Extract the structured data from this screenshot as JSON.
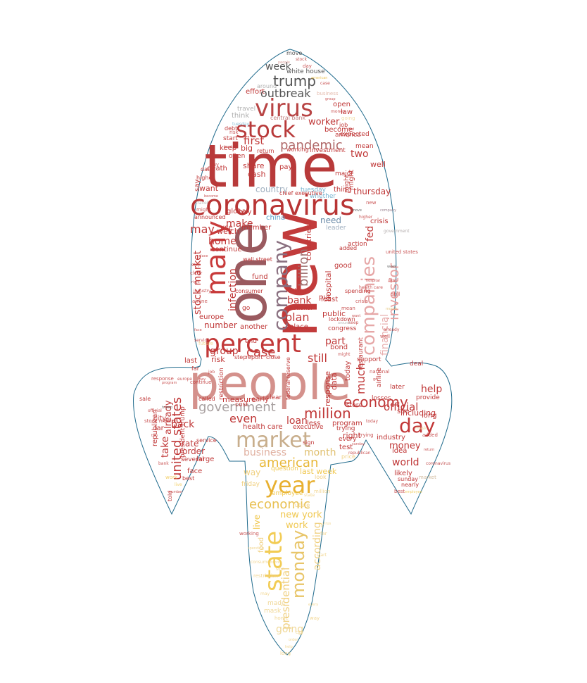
{
  "words": [
    {
      "text": "people",
      "color": "#d4918c"
    },
    {
      "text": "time",
      "color": "#b83a3a"
    },
    {
      "text": "new",
      "color": "#c23b3b"
    },
    {
      "text": "one",
      "color": "#9a5a5f"
    },
    {
      "text": "coronavirus",
      "color": "#b83434"
    },
    {
      "text": "percent",
      "color": "#c23838"
    },
    {
      "text": "virus",
      "color": "#b84444"
    },
    {
      "text": "stock",
      "color": "#b83a3a"
    },
    {
      "text": "many",
      "color": "#c83a3a"
    },
    {
      "text": "company",
      "color": "#8a7080"
    },
    {
      "text": "companies",
      "color": "#e6a7a7"
    },
    {
      "text": "market",
      "color": "#c8ae8c"
    },
    {
      "text": "year",
      "color": "#e8b030"
    },
    {
      "text": "state",
      "color": "#f2cc55"
    },
    {
      "text": "day",
      "color": "#c23838"
    },
    {
      "text": "monday",
      "color": "#e8c568"
    },
    {
      "text": "government",
      "color": "#a8a0a0"
    },
    {
      "text": "pandemic",
      "color": "#b06a6a"
    },
    {
      "text": "trump",
      "color": "#555555"
    },
    {
      "text": "economy",
      "color": "#c03838"
    },
    {
      "text": "million",
      "color": "#c03838"
    },
    {
      "text": "american",
      "color": "#e8b838"
    },
    {
      "text": "economic",
      "color": "#e8c050"
    },
    {
      "text": "united states",
      "color": "#c03838"
    },
    {
      "text": "investor",
      "color": "#e8a0a0"
    },
    {
      "text": "official",
      "color": "#c03838"
    },
    {
      "text": "billion",
      "color": "#a07070"
    },
    {
      "text": "even",
      "color": "#c03838"
    },
    {
      "text": "case",
      "color": "#c03838"
    },
    {
      "text": "much",
      "color": "#c03838"
    },
    {
      "text": "week",
      "color": "#555555"
    },
    {
      "text": "outbreak",
      "color": "#555555"
    },
    {
      "text": "stock market",
      "color": "#c03838"
    },
    {
      "text": "infection",
      "color": "#c03838"
    },
    {
      "text": "may",
      "color": "#c03838"
    },
    {
      "text": "business",
      "color": "#e0b0a0"
    },
    {
      "text": "financial",
      "color": "#e8b0b0"
    },
    {
      "text": "first",
      "color": "#c03838"
    },
    {
      "text": "worker",
      "color": "#c03838"
    },
    {
      "text": "two",
      "color": "#c03838"
    },
    {
      "text": "make",
      "color": "#c03838"
    },
    {
      "text": "home",
      "color": "#c03838"
    },
    {
      "text": "group",
      "color": "#c03838"
    },
    {
      "text": "loan",
      "color": "#c03838"
    },
    {
      "text": "still",
      "color": "#c03838"
    },
    {
      "text": "plan",
      "color": "#c03838"
    },
    {
      "text": "bank",
      "color": "#c03838"
    },
    {
      "text": "part",
      "color": "#c03838"
    },
    {
      "text": "help",
      "color": "#c03838"
    },
    {
      "text": "money",
      "color": "#c03838"
    },
    {
      "text": "world",
      "color": "#c03838"
    },
    {
      "text": "month",
      "color": "#e0c070"
    },
    {
      "text": "new york",
      "color": "#f0c850"
    },
    {
      "text": "work",
      "color": "#f0c850"
    },
    {
      "text": "presidential",
      "color": "#f0d080"
    },
    {
      "text": "according",
      "color": "#f0d080"
    },
    {
      "text": "going",
      "color": "#f0d898"
    },
    {
      "text": "take",
      "color": "#c03838"
    },
    {
      "text": "already",
      "color": "#c03838"
    },
    {
      "text": "back",
      "color": "#c03838"
    },
    {
      "text": "number",
      "color": "#c03838"
    },
    {
      "text": "country",
      "color": "#a0b0c0"
    },
    {
      "text": "need",
      "color": "#6a8aa8"
    },
    {
      "text": "fed",
      "color": "#c03838"
    },
    {
      "text": "thursday",
      "color": "#c03838"
    },
    {
      "text": "well",
      "color": "#c03838"
    },
    {
      "text": "including",
      "color": "#c03838"
    },
    {
      "text": "live",
      "color": "#f0c850"
    },
    {
      "text": "last week",
      "color": "#f0c850"
    },
    {
      "text": "china",
      "color": "#5aa0c8"
    },
    {
      "text": "tuesday",
      "color": "#78b4d0"
    },
    {
      "text": "whether",
      "color": "#78b4d0"
    },
    {
      "text": "hospital",
      "color": "#c03838"
    },
    {
      "text": "countries",
      "color": "#c03838"
    },
    {
      "text": "response",
      "color": "#c03838"
    },
    {
      "text": "data",
      "color": "#c03838"
    },
    {
      "text": "public",
      "color": "#c03838"
    },
    {
      "text": "risk",
      "color": "#c03838"
    },
    {
      "text": "measure",
      "color": "#c03838"
    },
    {
      "text": "health care",
      "color": "#c03838"
    },
    {
      "text": "less",
      "color": "#c03838"
    },
    {
      "text": "program",
      "color": "#c03838"
    },
    {
      "text": "bond",
      "color": "#c03838"
    },
    {
      "text": "put",
      "color": "#c03838"
    },
    {
      "text": "least",
      "color": "#c03838"
    },
    {
      "text": "good",
      "color": "#c03838"
    },
    {
      "text": "crisis",
      "color": "#c03838"
    },
    {
      "text": "fund",
      "color": "#c03838"
    },
    {
      "text": "europe",
      "color": "#c03838"
    },
    {
      "text": "global",
      "color": "#c03838"
    },
    {
      "text": "cash",
      "color": "#c03838"
    },
    {
      "text": "share",
      "color": "#c03838"
    },
    {
      "text": "death",
      "color": "#c03838"
    },
    {
      "text": "want",
      "color": "#c03838"
    },
    {
      "text": "welch",
      "color": "#c03838"
    },
    {
      "text": "continue",
      "color": "#c03838"
    },
    {
      "text": "use",
      "color": "#c03838"
    },
    {
      "text": "member",
      "color": "#c03838"
    },
    {
      "text": "buy",
      "color": "#c03838"
    },
    {
      "text": "say",
      "color": "#c03838"
    },
    {
      "text": "keep",
      "color": "#c03838"
    },
    {
      "text": "big",
      "color": "#c03838"
    },
    {
      "text": "pay",
      "color": "#c03838"
    },
    {
      "text": "law",
      "color": "#c03838"
    },
    {
      "text": "open",
      "color": "#c03838"
    },
    {
      "text": "become",
      "color": "#c03838"
    },
    {
      "text": "expected",
      "color": "#c03838"
    },
    {
      "text": "mean",
      "color": "#c03838"
    },
    {
      "text": "america",
      "color": "#c03838"
    },
    {
      "text": "job",
      "color": "#c03838"
    },
    {
      "text": "effort",
      "color": "#c03838"
    },
    {
      "text": "think",
      "color": "#b0b0b0"
    },
    {
      "text": "travel",
      "color": "#b0b0b0"
    },
    {
      "text": "white house",
      "color": "#555555"
    },
    {
      "text": "around",
      "color": "#b0b0b0"
    },
    {
      "text": "central bank",
      "color": "#c08080"
    },
    {
      "text": "working",
      "color": "#c03838"
    },
    {
      "text": "investment",
      "color": "#c03838"
    },
    {
      "text": "thing",
      "color": "#c03838"
    },
    {
      "text": "might",
      "color": "#c03838"
    },
    {
      "text": "major",
      "color": "#c03838"
    },
    {
      "text": "might",
      "color": "#c03838"
    },
    {
      "text": "action",
      "color": "#c03838"
    },
    {
      "text": "spending",
      "color": "#c03838"
    },
    {
      "text": "lockdown",
      "color": "#c03838"
    },
    {
      "text": "congress",
      "color": "#c03838"
    },
    {
      "text": "place",
      "color": "#c03838"
    },
    {
      "text": "another",
      "color": "#c03838"
    },
    {
      "text": "national",
      "color": "#c03838"
    },
    {
      "text": "making",
      "color": "#c03838"
    },
    {
      "text": "consumer",
      "color": "#c03838"
    },
    {
      "text": "close",
      "color": "#c03838"
    },
    {
      "text": "report",
      "color": "#c03838"
    },
    {
      "text": "step",
      "color": "#c03838"
    },
    {
      "text": "end",
      "color": "#c03838"
    },
    {
      "text": "go",
      "color": "#c03838"
    },
    {
      "text": "wall street",
      "color": "#c03838"
    },
    {
      "text": "restriction",
      "color": "#c03838"
    },
    {
      "text": "cost",
      "color": "#c03838"
    },
    {
      "text": "early",
      "color": "#c03838"
    },
    {
      "text": "clear",
      "color": "#c03838"
    },
    {
      "text": "federal reserve",
      "color": "#c03838"
    },
    {
      "text": "today",
      "color": "#c03838"
    },
    {
      "text": "support",
      "color": "#c03838"
    },
    {
      "text": "store",
      "color": "#c03838"
    },
    {
      "text": "restaurant",
      "color": "#c03838"
    },
    {
      "text": "see",
      "color": "#c03838"
    },
    {
      "text": "right",
      "color": "#c03838"
    },
    {
      "text": "test",
      "color": "#c03838"
    },
    {
      "text": "trying",
      "color": "#c03838"
    },
    {
      "text": "executive",
      "color": "#c03838"
    },
    {
      "text": "sign",
      "color": "#c03838"
    },
    {
      "text": "later",
      "color": "#c03838"
    },
    {
      "text": "idea",
      "color": "#c03838"
    },
    {
      "text": "industry",
      "color": "#c03838"
    },
    {
      "text": "likely",
      "color": "#c03838"
    },
    {
      "text": "sunday",
      "color": "#c03838"
    },
    {
      "text": "nearly",
      "color": "#c03838"
    },
    {
      "text": "long",
      "color": "#c03838"
    },
    {
      "text": "provide",
      "color": "#c03838"
    },
    {
      "text": "deal",
      "color": "#c03838"
    },
    {
      "text": "airline",
      "color": "#c03838"
    },
    {
      "text": "far",
      "color": "#c03838"
    },
    {
      "text": "republican",
      "color": "#c03838"
    },
    {
      "text": "president trump",
      "color": "#c03838"
    },
    {
      "text": "order",
      "color": "#c03838"
    },
    {
      "text": "rate",
      "color": "#c03838"
    },
    {
      "text": "large",
      "color": "#c03838"
    },
    {
      "text": "face",
      "color": "#c03838"
    },
    {
      "text": "several",
      "color": "#c03838"
    },
    {
      "text": "best",
      "color": "#c03838"
    },
    {
      "text": "last",
      "color": "#c03838"
    },
    {
      "text": "city",
      "color": "#c03838"
    },
    {
      "text": "sale",
      "color": "#c03838"
    },
    {
      "text": "called",
      "color": "#c03838"
    },
    {
      "text": "service",
      "color": "#c03838"
    },
    {
      "text": "told",
      "color": "#c03838"
    },
    {
      "text": "employee",
      "color": "#f0c850"
    },
    {
      "text": "question",
      "color": "#f0c850"
    },
    {
      "text": "way",
      "color": "#f0d080"
    },
    {
      "text": "friday",
      "color": "#f0d080"
    },
    {
      "text": "look",
      "color": "#f0d080"
    },
    {
      "text": "future",
      "color": "#f0d080"
    },
    {
      "text": "made",
      "color": "#f0d898"
    },
    {
      "text": "mask",
      "color": "#f0d898"
    },
    {
      "text": "food",
      "color": "#f0d080"
    },
    {
      "text": "every",
      "color": "#c03838"
    },
    {
      "text": "price",
      "color": "#f0d080"
    },
    {
      "text": "losses",
      "color": "#c03838"
    },
    {
      "text": "move",
      "color": "#555555"
    },
    {
      "text": "leader",
      "color": "#a0b0c0"
    },
    {
      "text": "added",
      "color": "#c03838"
    },
    {
      "text": "often",
      "color": "#c03838"
    },
    {
      "text": "start",
      "color": "#c03838"
    },
    {
      "text": "debt",
      "color": "#c03838"
    },
    {
      "text": "daily",
      "color": "#c03838"
    },
    {
      "text": "higher",
      "color": "#c03838"
    },
    {
      "text": "announced",
      "color": "#c03838"
    },
    {
      "text": "return",
      "color": "#c03838"
    },
    {
      "text": "chief executive",
      "color": "#c03838"
    },
    {
      "text": "far",
      "color": "#c03838"
    }
  ]
}
